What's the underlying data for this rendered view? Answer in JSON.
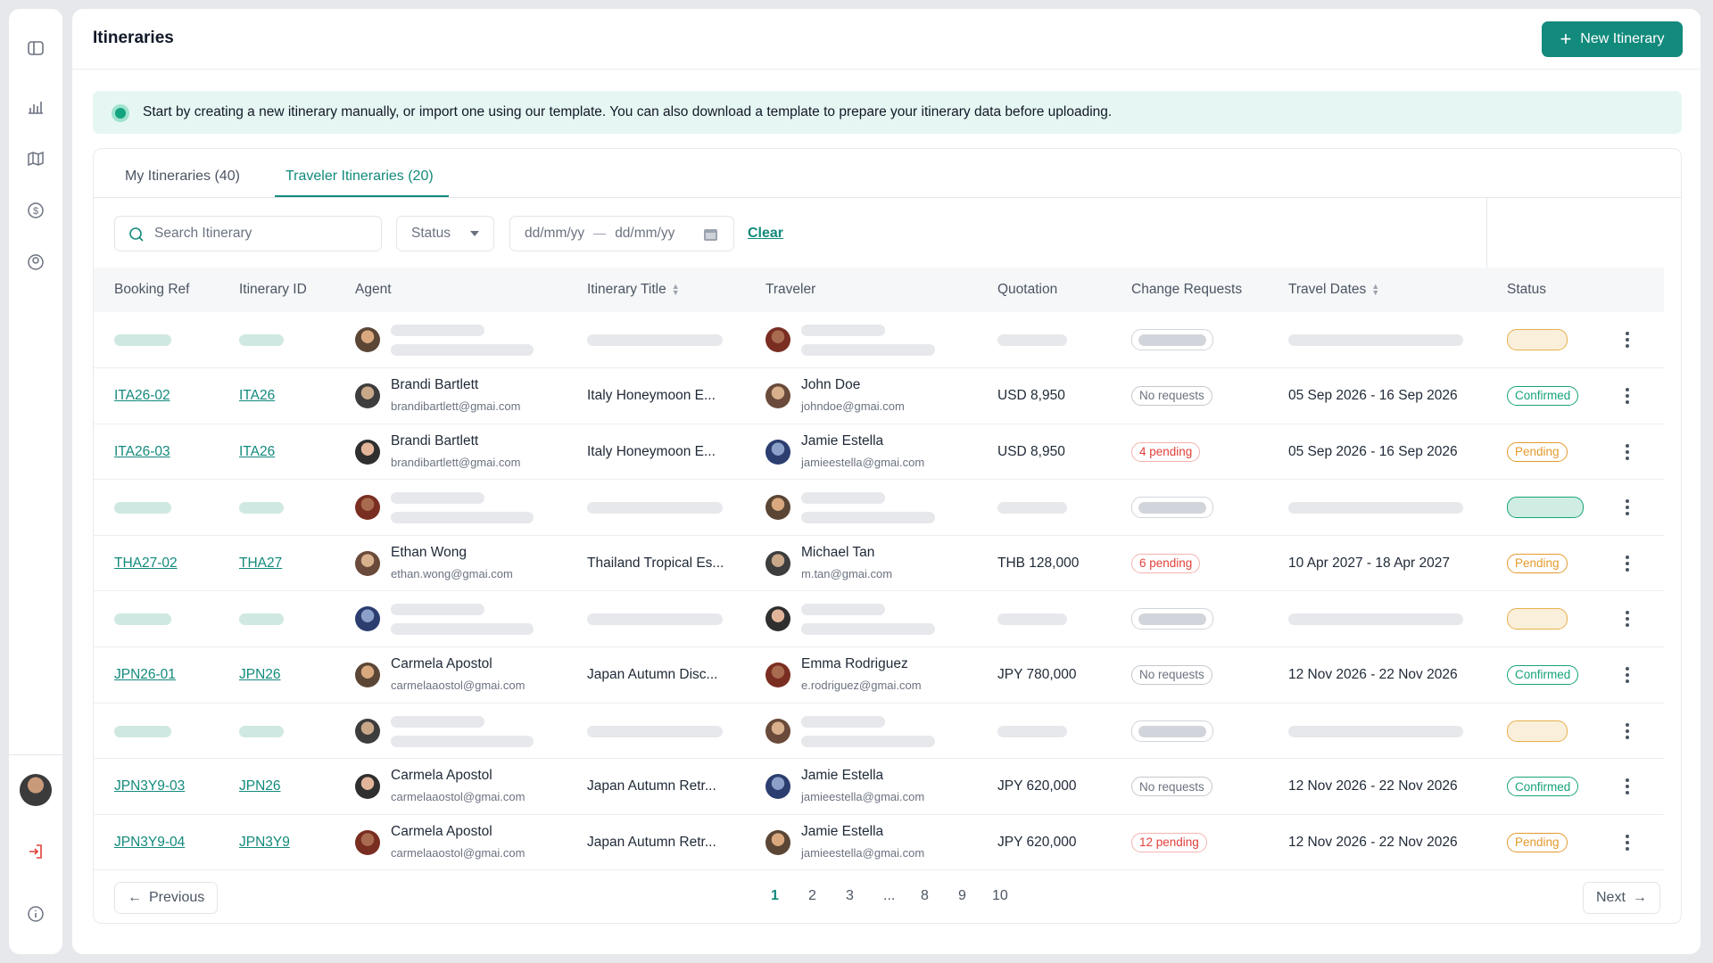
{
  "header": {
    "title": "Itineraries",
    "button": "New Itinerary"
  },
  "banner": "Start by creating a new itinerary manually, or import one using our template. You can also download a template to prepare your itinerary data before uploading.",
  "tabs": [
    "My Itineraries (40)",
    "Traveler Itineraries (20)"
  ],
  "filters": {
    "search_placeholder": "Search Itinerary",
    "status": "Status",
    "date_from": "dd/mm/yy",
    "date_to": "dd/mm/yy",
    "clear": "Clear"
  },
  "table": {
    "columns": [
      "Booking Ref",
      "Itinerary ID",
      "Agent",
      "Itinerary Title",
      "Traveler",
      "Quotation",
      "Change Requests",
      "Travel Dates",
      "Status"
    ],
    "rows": [
      null,
      {
        "booking_ref": "ITA26-02",
        "itinerary_id": "ITA26",
        "agent_name": "Brandi Bartlett",
        "agent_email": "brandibartlett@gmai.com",
        "title": "Italy Honeymoon E...",
        "traveler_name": "John Doe",
        "traveler_email": "johndoe@gmai.com",
        "quotation": "USD 8,950",
        "change_requests": "No requests",
        "requests_color": "#6b7280",
        "travel_dates": "05 Sep 2026 - 16 Sep 2026",
        "status": "Confirmed",
        "status_color": "#16a37a"
      },
      {
        "booking_ref": "ITA26-03",
        "itinerary_id": "ITA26",
        "agent_name": "Brandi Bartlett",
        "agent_email": "brandibartlett@gmai.com",
        "title": "Italy Honeymoon E...",
        "traveler_name": "Jamie Estella",
        "traveler_email": "jamieestella@gmai.com",
        "quotation": "USD 8,950",
        "change_requests": "4 pending",
        "requests_color": "#e0413a",
        "travel_dates": "05 Sep 2026 - 16 Sep 2026",
        "status": "Pending",
        "status_color": "#e39a2c"
      },
      null,
      {
        "booking_ref": "THA27-02",
        "itinerary_id": "THA27",
        "agent_name": "Ethan Wong",
        "agent_email": "ethan.wong@gmai.com",
        "title": "Thailand Tropical Es...",
        "traveler_name": "Michael Tan",
        "traveler_email": "m.tan@gmai.com",
        "quotation": "THB 128,000",
        "change_requests": "6 pending",
        "requests_color": "#e0413a",
        "travel_dates": "10 Apr 2027 - 18 Apr 2027",
        "status": "Pending",
        "status_color": "#e39a2c"
      },
      null,
      {
        "booking_ref": "JPN26-01",
        "itinerary_id": "JPN26",
        "agent_name": "Carmela Apostol",
        "agent_email": "carmelaaostol@gmai.com",
        "title": "Japan Autumn Disc...",
        "traveler_name": "Emma Rodriguez",
        "traveler_email": "e.rodriguez@gmai.com",
        "quotation": "JPY 780,000",
        "change_requests": "No requests",
        "requests_color": "#6b7280",
        "travel_dates": "12 Nov 2026 - 22 Nov 2026",
        "status": "Confirmed",
        "status_color": "#16a37a"
      },
      null,
      {
        "booking_ref": "JPN3Y9-03",
        "itinerary_id": "JPN26",
        "agent_name": "Carmela Apostol",
        "agent_email": "carmelaaostol@gmai.com",
        "title": "Japan Autumn Retr...",
        "traveler_name": "Jamie Estella",
        "traveler_email": "jamieestella@gmai.com",
        "quotation": "JPY 620,000",
        "change_requests": "No requests",
        "requests_color": "#6b7280",
        "travel_dates": "12 Nov 2026 - 22 Nov 2026",
        "status": "Confirmed",
        "status_color": "#16a37a"
      },
      {
        "booking_ref": "JPN3Y9-04",
        "itinerary_id": "JPN3Y9",
        "agent_name": "Carmela Apostol",
        "agent_email": "carmelaaostol@gmai.com",
        "title": "Japan Autumn Retr...",
        "traveler_name": "Jamie Estella",
        "traveler_email": "jamieestella@gmai.com",
        "quotation": "JPY 620,000",
        "change_requests": "12 pending",
        "requests_color": "#e0413a",
        "travel_dates": "12 Nov 2026 - 22 Nov 2026",
        "status": "Pending",
        "status_color": "#e39a2c"
      }
    ]
  },
  "pagination": {
    "previous": "Previous",
    "pages": [
      "1",
      "2",
      "3",
      "...",
      "8",
      "9",
      "10"
    ],
    "next": "Next"
  }
}
